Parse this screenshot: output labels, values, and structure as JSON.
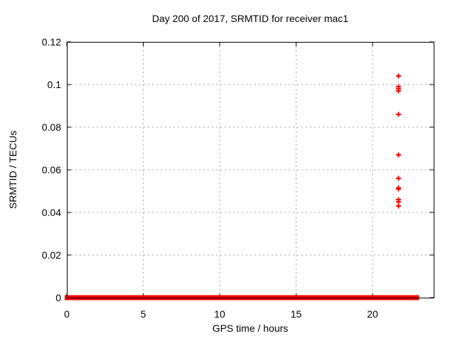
{
  "chart_data": {
    "type": "scatter",
    "title": "Day 200 of 2017, SRMTID for receiver mac1",
    "xlabel": "GPS time / hours",
    "ylabel": "SRMTID / TECUs",
    "xlim": [
      0,
      24
    ],
    "ylim": [
      0,
      0.12
    ],
    "xtick_values": [
      0,
      5,
      10,
      15,
      20
    ],
    "xtick_labels": [
      "0",
      "5",
      "10",
      "15",
      "20"
    ],
    "ytick_values": [
      0,
      0.02,
      0.04,
      0.06,
      0.08,
      0.1,
      0.12
    ],
    "ytick_labels": [
      "0",
      "0.02",
      "0.04",
      "0.06",
      "0.08",
      "0.1",
      "0.12"
    ],
    "grid": true,
    "legend": "none",
    "marker": "plus",
    "colors": {
      "series": "#ff0000",
      "grid": "#a0a0a0",
      "frame": "#000000",
      "text": "#000000",
      "background": "#ffffff"
    },
    "series": [
      {
        "name": "SRMTID",
        "zero_band_segments": [
          [
            0,
            21.6
          ],
          [
            21.8,
            22.9
          ]
        ],
        "points": [
          [
            21.7,
            0.104
          ],
          [
            21.7,
            0.099
          ],
          [
            21.7,
            0.098
          ],
          [
            21.7,
            0.097
          ],
          [
            21.7,
            0.086
          ],
          [
            21.7,
            0.067
          ],
          [
            21.7,
            0.056
          ],
          [
            21.7,
            0.0515
          ],
          [
            21.7,
            0.051
          ],
          [
            21.7,
            0.046
          ],
          [
            21.7,
            0.045
          ],
          [
            21.7,
            0.043
          ]
        ],
        "note": "dense band of + markers at y=0 from 0 to 21.6 h and 21.8 to 22.9 h; isolated elevated points near 21.7 h"
      }
    ]
  }
}
